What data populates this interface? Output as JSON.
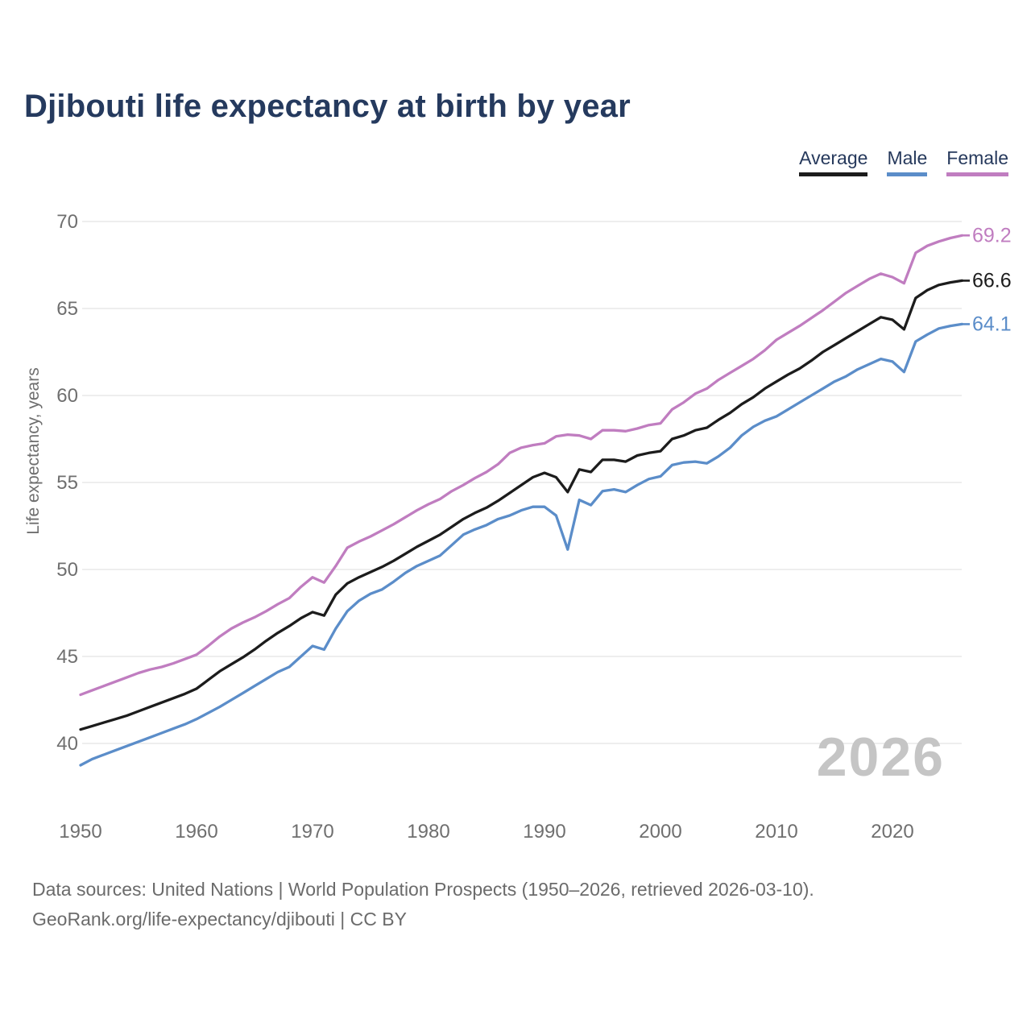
{
  "header": {
    "title": "Djibouti life expectancy at birth by year"
  },
  "legend": {
    "items": [
      {
        "label": "Average",
        "color": "#1c1c1c"
      },
      {
        "label": "Male",
        "color": "#5b8dc9"
      },
      {
        "label": "Female",
        "color": "#c07dc0"
      }
    ]
  },
  "chart_data": {
    "type": "line",
    "title": "Djibouti life expectancy at birth by year",
    "xlabel": "",
    "ylabel": "Life expectancy, years",
    "x_ticks": [
      1950,
      1960,
      1970,
      1980,
      1990,
      2000,
      2010,
      2020
    ],
    "y_ticks": [
      40,
      45,
      50,
      55,
      60,
      65,
      70
    ],
    "x_range": [
      1950,
      2026
    ],
    "ylim": [
      38.5,
      70
    ],
    "grid": "horizontal",
    "legend_position": "top-right",
    "watermark": "2026",
    "years": [
      1950,
      1951,
      1952,
      1953,
      1954,
      1955,
      1956,
      1957,
      1958,
      1959,
      1960,
      1961,
      1962,
      1963,
      1964,
      1965,
      1966,
      1967,
      1968,
      1969,
      1970,
      1971,
      1972,
      1973,
      1974,
      1975,
      1976,
      1977,
      1978,
      1979,
      1980,
      1981,
      1982,
      1983,
      1984,
      1985,
      1986,
      1987,
      1988,
      1989,
      1990,
      1991,
      1992,
      1993,
      1994,
      1995,
      1996,
      1997,
      1998,
      1999,
      2000,
      2001,
      2002,
      2003,
      2004,
      2005,
      2006,
      2007,
      2008,
      2009,
      2010,
      2011,
      2012,
      2013,
      2014,
      2015,
      2016,
      2017,
      2018,
      2019,
      2020,
      2021,
      2022,
      2023,
      2024,
      2025,
      2026
    ],
    "series": [
      {
        "name": "Average",
        "color": "#1c1c1c",
        "end_label": "66.6",
        "values": [
          40.8,
          41.0,
          41.2,
          41.4,
          41.6,
          41.85,
          42.1,
          42.35,
          42.6,
          42.85,
          43.15,
          43.65,
          44.15,
          44.55,
          44.95,
          45.4,
          45.9,
          46.35,
          46.75,
          47.2,
          47.55,
          47.35,
          48.55,
          49.2,
          49.55,
          49.85,
          50.15,
          50.5,
          50.9,
          51.3,
          51.65,
          52.0,
          52.45,
          52.9,
          53.25,
          53.55,
          53.95,
          54.4,
          54.85,
          55.3,
          55.55,
          55.3,
          54.45,
          55.75,
          55.6,
          56.3,
          56.3,
          56.2,
          56.55,
          56.7,
          56.8,
          57.5,
          57.7,
          58.0,
          58.15,
          58.6,
          59.0,
          59.5,
          59.9,
          60.4,
          60.8,
          61.2,
          61.55,
          62.0,
          62.5,
          62.9,
          63.3,
          63.7,
          64.1,
          64.5,
          64.35,
          63.8,
          65.6,
          66.05,
          66.35,
          66.5,
          66.6
        ]
      },
      {
        "name": "Male",
        "color": "#5b8dc9",
        "end_label": "64.1",
        "values": [
          38.75,
          39.1,
          39.35,
          39.6,
          39.85,
          40.1,
          40.35,
          40.6,
          40.85,
          41.1,
          41.4,
          41.75,
          42.1,
          42.5,
          42.9,
          43.3,
          43.7,
          44.1,
          44.4,
          45.0,
          45.6,
          45.4,
          46.6,
          47.6,
          48.2,
          48.6,
          48.85,
          49.3,
          49.8,
          50.2,
          50.5,
          50.8,
          51.4,
          52.0,
          52.3,
          52.55,
          52.9,
          53.1,
          53.4,
          53.6,
          53.6,
          53.1,
          51.15,
          54.0,
          53.7,
          54.5,
          54.6,
          54.45,
          54.85,
          55.2,
          55.35,
          56.0,
          56.15,
          56.2,
          56.1,
          56.5,
          57.0,
          57.7,
          58.2,
          58.55,
          58.8,
          59.2,
          59.6,
          60.0,
          60.4,
          60.8,
          61.1,
          61.5,
          61.8,
          62.1,
          61.95,
          61.35,
          63.1,
          63.5,
          63.85,
          64.0,
          64.1
        ]
      },
      {
        "name": "Female",
        "color": "#c07dc0",
        "end_label": "69.2",
        "values": [
          42.8,
          43.05,
          43.3,
          43.55,
          43.8,
          44.05,
          44.25,
          44.4,
          44.6,
          44.85,
          45.1,
          45.6,
          46.15,
          46.6,
          46.95,
          47.25,
          47.6,
          48.0,
          48.35,
          49.0,
          49.55,
          49.25,
          50.2,
          51.25,
          51.6,
          51.9,
          52.25,
          52.6,
          53.0,
          53.4,
          53.75,
          54.05,
          54.5,
          54.85,
          55.25,
          55.6,
          56.05,
          56.7,
          57.0,
          57.15,
          57.25,
          57.65,
          57.75,
          57.7,
          57.5,
          58.0,
          58.0,
          57.95,
          58.1,
          58.3,
          58.4,
          59.2,
          59.6,
          60.1,
          60.4,
          60.9,
          61.3,
          61.7,
          62.1,
          62.6,
          63.2,
          63.6,
          64.0,
          64.45,
          64.9,
          65.4,
          65.9,
          66.3,
          66.7,
          67.0,
          66.8,
          66.45,
          68.2,
          68.6,
          68.85,
          69.05,
          69.2
        ]
      }
    ]
  },
  "footer": {
    "line1": "Data sources: United Nations | World Population Prospects (1950–2026, retrieved 2026-03-10).",
    "line2": "GeoRank.org/life-expectancy/djibouti | CC BY"
  }
}
